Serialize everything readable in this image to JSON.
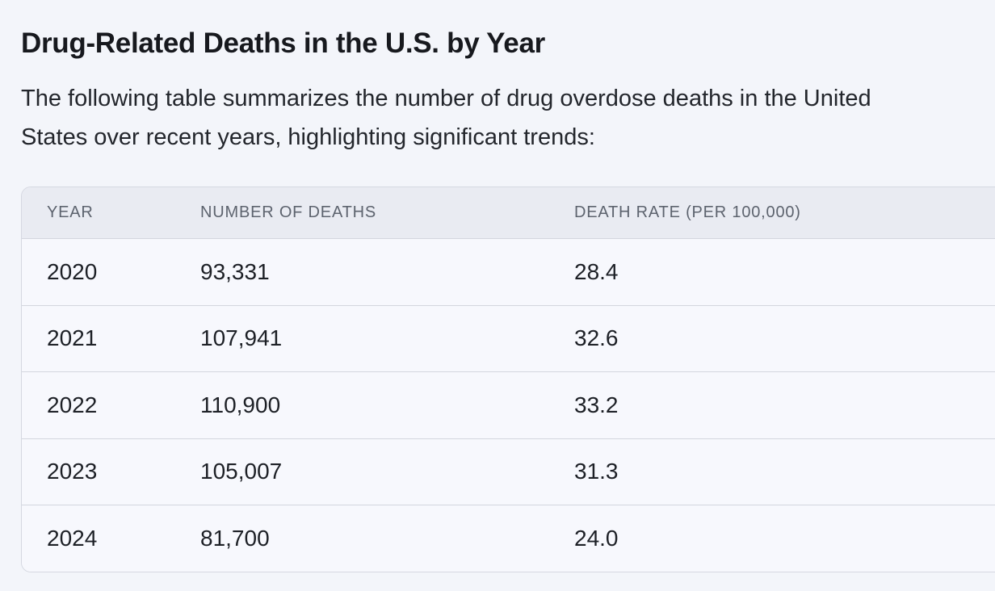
{
  "page": {
    "title": "Drug-Related Deaths in the U.S. by Year",
    "intro_lines": [
      "The following table summarizes the number of drug overdose deaths in the United",
      "States over recent years, highlighting significant trends:"
    ]
  },
  "table": {
    "columns": [
      "YEAR",
      "NUMBER OF DEATHS",
      "DEATH RATE (PER 100,000)"
    ],
    "rows": [
      {
        "year": "2020",
        "deaths": "93,331",
        "rate": "28.4"
      },
      {
        "year": "2021",
        "deaths": "107,941",
        "rate": "32.6"
      },
      {
        "year": "2022",
        "deaths": "110,900",
        "rate": "33.2"
      },
      {
        "year": "2023",
        "deaths": "105,007",
        "rate": "31.3"
      },
      {
        "year": "2024",
        "deaths": "81,700",
        "rate": "24.0"
      }
    ]
  },
  "chart_data": {
    "type": "table",
    "title": "Drug-Related Deaths in the U.S. by Year",
    "columns": [
      "Year",
      "Number of Deaths",
      "Death Rate (per 100,000)"
    ],
    "x": [
      2020,
      2021,
      2022,
      2023,
      2024
    ],
    "series": [
      {
        "name": "Number of Deaths",
        "values": [
          93331,
          107941,
          110900,
          105007,
          81700
        ]
      },
      {
        "name": "Death Rate (per 100,000)",
        "values": [
          28.4,
          32.6,
          33.2,
          31.3,
          24.0
        ]
      }
    ]
  },
  "colors": {
    "page_background": "#f3f5fa",
    "table_header_background": "#e9ebf2",
    "table_row_background": "#f7f8fd",
    "table_border": "#d5d8e1",
    "row_separator": "#d3d6de",
    "title_text": "#17191e",
    "body_text": "#23262c",
    "header_text": "#5d636e",
    "cell_text": "#1d2026"
  }
}
